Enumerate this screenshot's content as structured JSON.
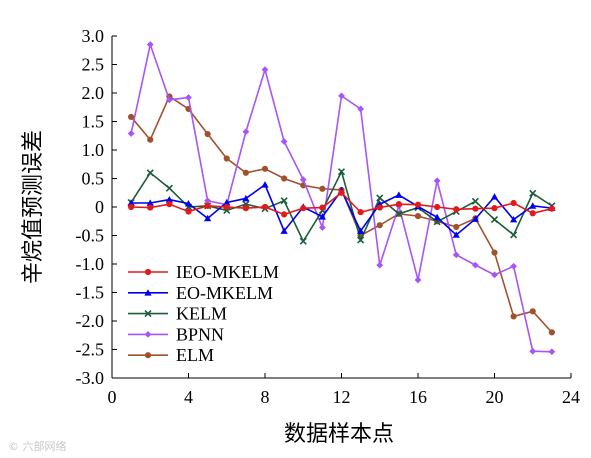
{
  "chart_data": {
    "type": "line",
    "xlabel": "数据样本点",
    "ylabel": "辛烷值预测误差",
    "xlim": [
      0,
      24
    ],
    "ylim": [
      -3.0,
      3.0
    ],
    "xticks": [
      0,
      4,
      8,
      12,
      16,
      20,
      24
    ],
    "yticks": [
      "3.0",
      "2.5",
      "2.0",
      "1.5",
      "1.0",
      "0.5",
      "0",
      "-0.5",
      "-1.0",
      "-1.5",
      "-2.0",
      "-2.5",
      "-3.0"
    ],
    "grid": false,
    "legend_position": "bottom-left",
    "x": [
      1,
      2,
      3,
      4,
      5,
      6,
      7,
      8,
      9,
      10,
      11,
      12,
      13,
      14,
      15,
      16,
      17,
      18,
      19,
      20,
      21,
      22,
      23
    ],
    "series": [
      {
        "name": "IEO-MKELM",
        "color": "#e31a1c",
        "marker": "circle",
        "values": [
          0.0,
          -0.01,
          0.05,
          -0.08,
          0.02,
          0.0,
          -0.02,
          0.0,
          -0.13,
          -0.02,
          -0.01,
          0.25,
          -0.09,
          -0.01,
          0.05,
          0.04,
          0.0,
          -0.04,
          -0.03,
          -0.02,
          0.07,
          -0.11,
          -0.03
        ]
      },
      {
        "name": "EO-MKELM",
        "color": "#0000ee",
        "marker": "triangle",
        "values": [
          0.07,
          0.07,
          0.13,
          0.06,
          -0.2,
          0.08,
          0.15,
          0.39,
          -0.42,
          0.0,
          -0.17,
          0.29,
          -0.42,
          0.05,
          0.21,
          0.01,
          -0.18,
          -0.49,
          -0.21,
          0.18,
          -0.22,
          0.02,
          -0.02
        ]
      },
      {
        "name": "KELM",
        "color": "#1a5e3a",
        "marker": "cross",
        "values": [
          0.08,
          0.6,
          0.33,
          0.0,
          0.02,
          -0.06,
          0.05,
          -0.03,
          0.11,
          -0.6,
          -0.06,
          0.62,
          -0.58,
          0.16,
          -0.12,
          -0.01,
          -0.26,
          -0.08,
          0.1,
          -0.22,
          -0.49,
          0.24,
          0.02
        ]
      },
      {
        "name": "BPNN",
        "color": "#a855f7",
        "marker": "diamond",
        "values": [
          1.29,
          2.85,
          1.88,
          1.92,
          0.11,
          0.04,
          1.32,
          2.41,
          1.15,
          0.48,
          -0.36,
          1.95,
          1.72,
          -1.02,
          0.02,
          -1.28,
          0.46,
          -0.84,
          -1.02,
          -1.19,
          -1.04,
          -2.53,
          -2.54
        ]
      },
      {
        "name": "ELM",
        "color": "#a0522d",
        "marker": "circle",
        "values": [
          1.58,
          1.18,
          1.94,
          1.72,
          1.28,
          0.85,
          0.6,
          0.67,
          0.5,
          0.38,
          0.32,
          0.3,
          -0.5,
          -0.32,
          -0.12,
          -0.16,
          -0.25,
          -0.35,
          -0.2,
          -0.8,
          -1.92,
          -1.83,
          -2.2
        ]
      }
    ]
  },
  "watermark": "© 六部网络"
}
